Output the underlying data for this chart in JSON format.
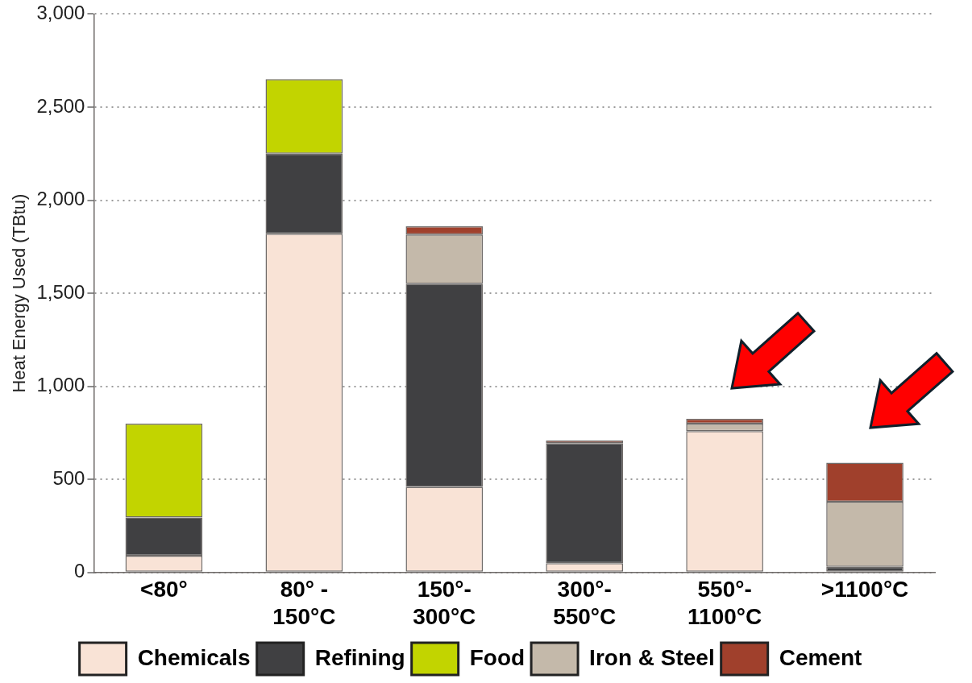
{
  "chart_data": {
    "type": "bar",
    "stacked": true,
    "ylabel": "Heat Energy Used (TBtu)",
    "categories": [
      "<80°",
      "80° - 150°C",
      "150°-300°C",
      "300°-550°C",
      "550°-1100°C",
      ">1100°C"
    ],
    "series": [
      {
        "name": "Chemicals",
        "color": "#f9e3d6",
        "values": [
          90,
          1820,
          460,
          50,
          760,
          null
        ]
      },
      {
        "name": "Refining",
        "color": "#404042",
        "values": [
          205,
          430,
          1090,
          645,
          null,
          30
        ]
      },
      {
        "name": "Food",
        "color": "#c2d400",
        "values": [
          505,
          400,
          null,
          null,
          null,
          null
        ]
      },
      {
        "name": "Iron & Steel",
        "color": "#c4b9aa",
        "values": [
          null,
          null,
          265,
          null,
          40,
          350
        ]
      },
      {
        "name": "Cement",
        "color": "#a0402c",
        "values": [
          null,
          null,
          45,
          15,
          25,
          210
        ]
      }
    ],
    "ylim": [
      0,
      3000
    ],
    "yticks": [
      0,
      500,
      {
        "value": 1000,
        "label": "1,000"
      },
      {
        "value": 1500,
        "label": "1,500"
      },
      {
        "value": 2000,
        "label": "2,000"
      },
      {
        "value": 2500,
        "label": "2,500"
      },
      {
        "value": 3000,
        "label": "3,000"
      }
    ],
    "grid": "y",
    "legend": "bottom"
  }
}
